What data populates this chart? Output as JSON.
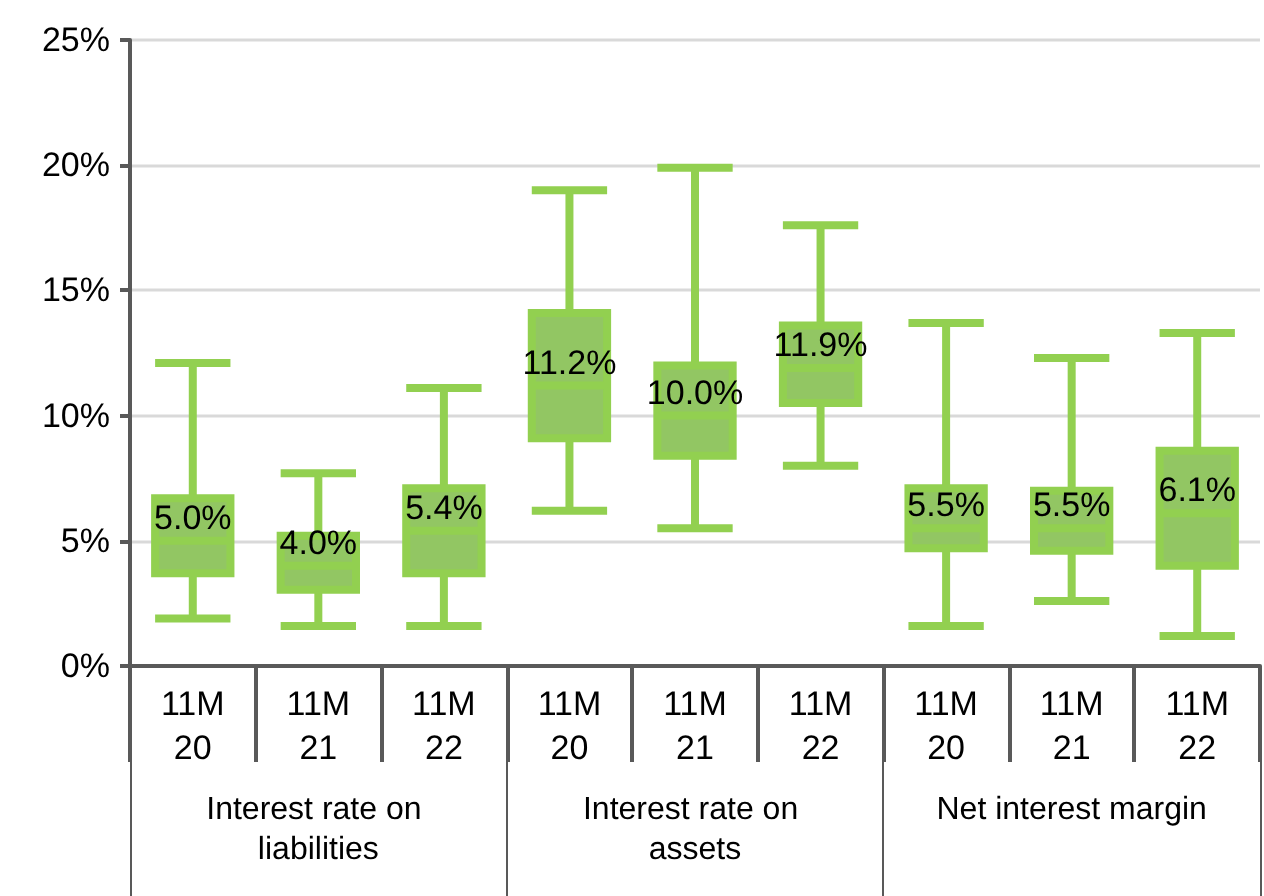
{
  "chart_data": {
    "type": "box",
    "categories": [
      "11M\n20",
      "11M\n21",
      "11M\n22",
      "11M\n20",
      "11M\n21",
      "11M\n22",
      "11M\n20",
      "11M\n21",
      "11M\n22"
    ],
    "annotations": [
      "Interest rate on liabilities",
      "Interest rate on assets",
      "Net interest margin"
    ],
    "series": [
      {
        "color": "#92c663",
        "boxes": [
          {
            "low": 1.9,
            "q1": 3.7,
            "median": 5.0,
            "q3": 6.7,
            "high": 12.1
          },
          {
            "low": 1.6,
            "q1": 3.05,
            "median": 4.0,
            "q3": 5.2,
            "high": 7.7
          },
          {
            "low": 1.6,
            "q1": 3.7,
            "median": 5.4,
            "q3": 7.1,
            "high": 11.1
          },
          {
            "low": 6.2,
            "q1": 9.1,
            "median": 11.2,
            "q3": 14.1,
            "high": 19.0
          },
          {
            "low": 5.5,
            "q1": 8.4,
            "median": 10.0,
            "q3": 12.0,
            "high": 19.9
          },
          {
            "low": 8.0,
            "q1": 10.5,
            "median": 11.9,
            "q3": 13.6,
            "high": 17.6
          },
          {
            "low": 1.6,
            "q1": 4.7,
            "median": 5.5,
            "q3": 7.1,
            "high": 13.7
          },
          {
            "low": 2.6,
            "q1": 4.6,
            "median": 5.5,
            "q3": 7.0,
            "high": 12.3
          },
          {
            "low": 1.2,
            "q1": 4.0,
            "median": 6.1,
            "q3": 8.6,
            "high": 13.3
          }
        ],
        "value_labels": [
          "5.0%",
          "4.0%",
          "5.4%",
          "11.2%",
          "10.0%",
          "11.9%",
          "5.5%",
          "5.5%",
          "6.1%"
        ]
      }
    ],
    "ylim": [
      0,
      25
    ],
    "yticks": [
      {
        "value": 0,
        "label": "0%"
      },
      {
        "value": 5,
        "label": "5%"
      },
      {
        "value": 10,
        "label": "10%"
      },
      {
        "value": 15,
        "label": "15%"
      },
      {
        "value": 20,
        "label": "20%"
      },
      {
        "value": 25,
        "label": "25%"
      }
    ],
    "grid": "y"
  }
}
